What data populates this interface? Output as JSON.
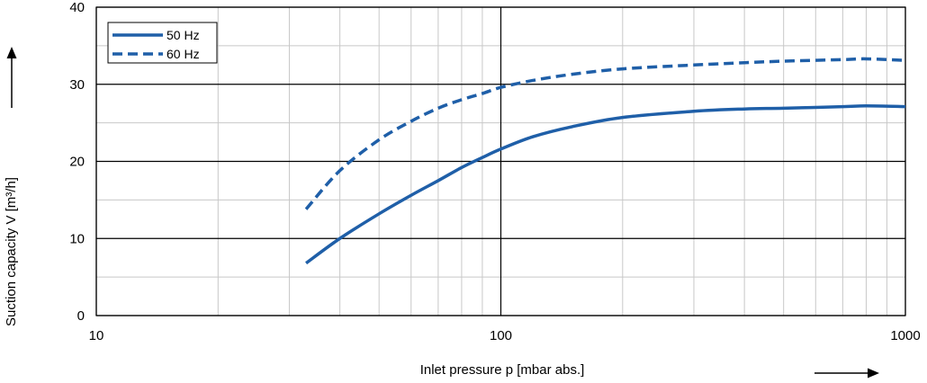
{
  "chart_data": {
    "type": "line",
    "title": "",
    "xlabel": "Inlet pressure p [mbar abs.]",
    "ylabel": "Suction capacity V [m³/h]",
    "x_scale": "log",
    "xlim": [
      10,
      1000
    ],
    "ylim": [
      0,
      40
    ],
    "x_ticks": [
      "10",
      "100",
      "1000"
    ],
    "y_ticks": [
      "0",
      "10",
      "20",
      "30",
      "40"
    ],
    "grid": true,
    "legend_position": "top-left",
    "series": [
      {
        "name": "50 Hz",
        "style": "solid",
        "color": "#1f5fa8",
        "x": [
          33,
          40,
          50,
          60,
          70,
          80,
          90,
          100,
          120,
          150,
          200,
          300,
          400,
          500,
          700,
          800,
          1000
        ],
        "y": [
          6.8,
          10.0,
          13.2,
          15.6,
          17.5,
          19.2,
          20.5,
          21.6,
          23.2,
          24.5,
          25.7,
          26.5,
          26.8,
          26.9,
          27.1,
          27.2,
          27.1
        ]
      },
      {
        "name": "60 Hz",
        "style": "dashed",
        "color": "#1f5fa8",
        "x": [
          33,
          40,
          50,
          60,
          70,
          80,
          90,
          100,
          120,
          150,
          200,
          300,
          400,
          500,
          700,
          800,
          1000
        ],
        "y": [
          13.8,
          18.8,
          22.8,
          25.2,
          26.9,
          28.0,
          28.8,
          29.6,
          30.5,
          31.3,
          32.0,
          32.5,
          32.8,
          33.0,
          33.2,
          33.3,
          33.1
        ]
      }
    ]
  }
}
